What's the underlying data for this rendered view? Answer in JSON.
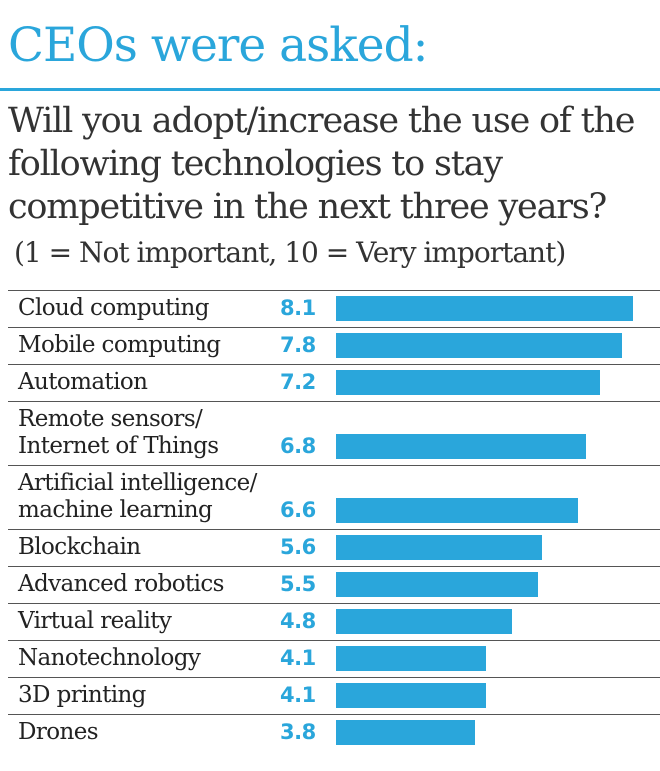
{
  "header": {
    "title": "CEOs were asked:",
    "question": "Will you adopt/increase the use of the following technologies to stay competitive in the next three years?",
    "scale_note": "(1 = Not important, 10 = Very important)"
  },
  "colors": {
    "accent": "#2aa6db",
    "text": "#333333",
    "rule": "#555555"
  },
  "chart_data": {
    "type": "bar",
    "orientation": "horizontal",
    "title": "CEOs were asked:",
    "xlim": [
      0,
      10
    ],
    "categories": [
      [
        "Cloud computing"
      ],
      [
        "Mobile computing"
      ],
      [
        "Automation"
      ],
      [
        "Remote sensors/",
        "Internet of Things"
      ],
      [
        "Artificial intelligence/",
        "machine learning"
      ],
      [
        "Blockchain"
      ],
      [
        "Advanced robotics"
      ],
      [
        "Virtual reality"
      ],
      [
        "Nanotechnology"
      ],
      [
        "3D printing"
      ],
      [
        "Drones"
      ]
    ],
    "values": [
      8.1,
      7.8,
      7.2,
      6.8,
      6.6,
      5.6,
      5.5,
      4.8,
      4.1,
      4.1,
      3.8
    ],
    "value_labels": [
      "8.1",
      "7.8",
      "7.2",
      "6.8",
      "6.6",
      "5.6",
      "5.5",
      "4.8",
      "4.1",
      "4.1",
      "3.8"
    ],
    "grid": false,
    "legend": "none"
  }
}
